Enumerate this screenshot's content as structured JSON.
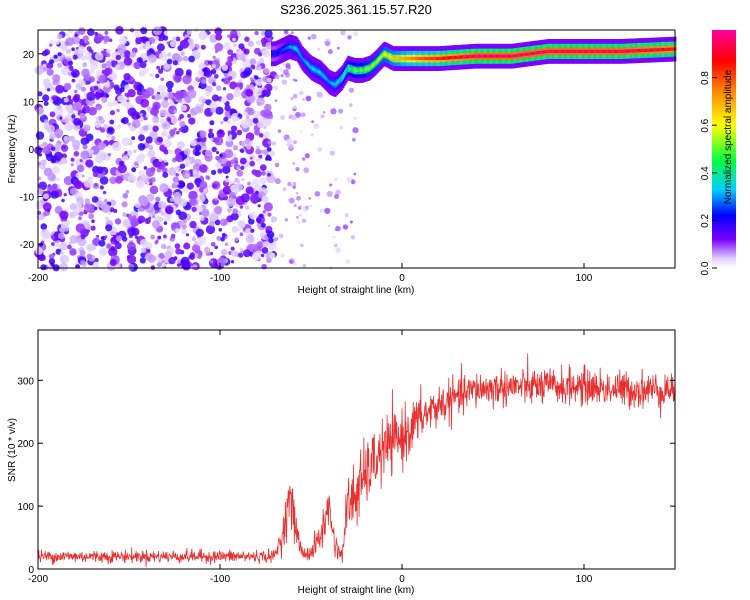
{
  "title": "S236.2025.361.15.57.R20",
  "chart_data": [
    {
      "type": "heatmap",
      "xlabel": "Height of straight line (km)",
      "ylabel": "Frequency (Hz)",
      "xlim": [
        -200,
        150
      ],
      "ylim": [
        -25,
        25
      ],
      "x_ticks": [
        -200,
        -100,
        0,
        100
      ],
      "y_ticks": [
        -20,
        -10,
        0,
        10,
        20
      ],
      "colorbar": {
        "label": "Normalized spectral amplitude",
        "range": [
          0,
          1
        ],
        "ticks": [
          "0.0",
          "0.2",
          "0.4",
          "0.6",
          "0.8"
        ],
        "tick_values": [
          0.0,
          0.2,
          0.4,
          0.6,
          0.8
        ]
      },
      "noise_region_x": [
        -200,
        -70
      ],
      "ridge": {
        "x": [
          -70,
          -62,
          -58,
          -55,
          -50,
          -45,
          -40,
          -37,
          -33,
          -30,
          -26,
          -22,
          -18,
          -15,
          -10,
          -5,
          0,
          10,
          20,
          40,
          60,
          80,
          100,
          120,
          150
        ],
        "y": [
          20,
          21.5,
          21,
          19,
          17,
          16,
          14,
          13.5,
          15,
          17,
          16.5,
          16.5,
          17,
          18,
          20,
          19,
          19,
          19,
          19,
          19.5,
          19.5,
          20.5,
          20.5,
          20.5,
          21
        ],
        "amp": [
          0.2,
          0.3,
          0.35,
          0.3,
          0.35,
          0.35,
          0.3,
          0.35,
          0.4,
          0.45,
          0.5,
          0.5,
          0.55,
          0.55,
          0.6,
          0.65,
          0.7,
          0.8,
          0.85,
          0.95,
          0.95,
          0.95,
          0.95,
          0.95,
          0.9
        ]
      }
    },
    {
      "type": "line",
      "xlabel": "Height of straight line (km)",
      "ylabel": "SNR (10 * v/v)",
      "xlim": [
        -200,
        150
      ],
      "ylim": [
        0,
        380
      ],
      "x_ticks": [
        -200,
        -100,
        0,
        100
      ],
      "y_ticks": [
        0,
        100,
        200,
        300
      ],
      "color": "#e83030",
      "envelope": {
        "x": [
          -200,
          -70,
          -65,
          -62,
          -58,
          -55,
          -50,
          -45,
          -40,
          -37,
          -33,
          -30,
          -25,
          -20,
          -15,
          -10,
          0,
          10,
          20,
          40,
          60,
          80,
          100,
          120,
          150
        ],
        "mean": [
          20,
          20,
          60,
          120,
          60,
          25,
          25,
          50,
          100,
          40,
          20,
          100,
          120,
          150,
          170,
          190,
          210,
          240,
          260,
          285,
          290,
          290,
          290,
          285,
          285
        ],
        "spread": [
          12,
          12,
          35,
          45,
          35,
          15,
          15,
          35,
          40,
          25,
          12,
          60,
          70,
          60,
          60,
          60,
          55,
          45,
          40,
          35,
          35,
          35,
          35,
          35,
          35
        ]
      }
    }
  ]
}
